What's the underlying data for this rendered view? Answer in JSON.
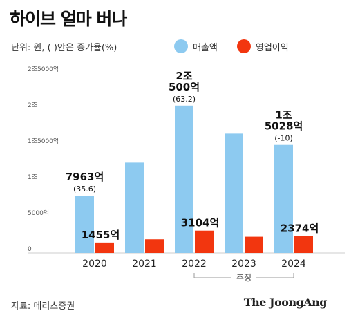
{
  "chart_data": {
    "type": "bar",
    "title": "하이브 얼마 버나",
    "unit_note": "단위: 원, ( )안은 증가율(%)",
    "categories": [
      "2020",
      "2021",
      "2022",
      "2023",
      "2024"
    ],
    "series": [
      {
        "name": "매출액",
        "color": "#8DCAF0",
        "values": [
          7963,
          12560,
          20500,
          16600,
          15028
        ]
      },
      {
        "name": "영업이익",
        "color": "#F2360F",
        "values": [
          1455,
          1900,
          3104,
          2250,
          2374
        ]
      }
    ],
    "ylim": [
      0,
      25000
    ],
    "yticks": [
      {
        "value": 0,
        "label": "0"
      },
      {
        "value": 5000,
        "label": "5000억"
      },
      {
        "value": 10000,
        "label": "1조"
      },
      {
        "value": 15000,
        "label": "1조5000억"
      },
      {
        "value": 20000,
        "label": "2조"
      },
      {
        "value": 25000,
        "label": "2조5000억"
      }
    ],
    "annotations": [
      {
        "category": "2020",
        "series": "매출액",
        "lines": [
          "7963억",
          "(35.6)"
        ]
      },
      {
        "category": "2022",
        "series": "매출액",
        "lines": [
          "2조",
          "500억",
          "(63.2)"
        ]
      },
      {
        "category": "2024",
        "series": "매출액",
        "lines": [
          "1조",
          "5028억",
          "(-10)"
        ]
      },
      {
        "category": "2020",
        "series": "영업이익",
        "lines": [
          "1455억"
        ]
      },
      {
        "category": "2022",
        "series": "영업이익",
        "lines": [
          "3104억"
        ]
      },
      {
        "category": "2024",
        "series": "영업이익",
        "lines": [
          "2374억"
        ]
      }
    ],
    "estimate_label": "추정",
    "estimate_categories": [
      "2022",
      "2024"
    ],
    "grid": false,
    "legend_position": "top-right"
  },
  "source": "자료: 메리츠증권",
  "brand": "The JoongAng"
}
